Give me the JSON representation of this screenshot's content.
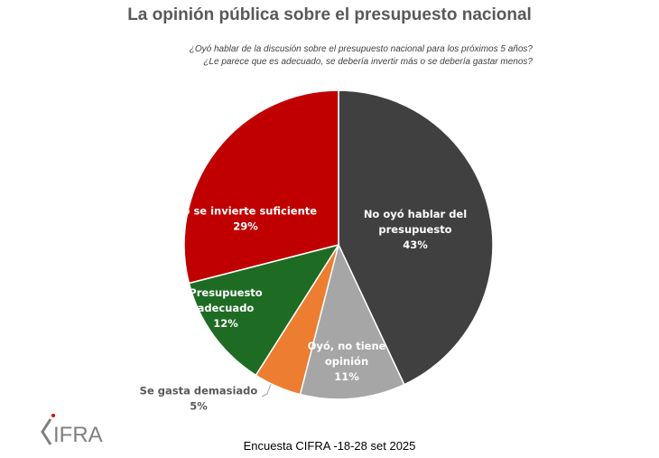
{
  "chart_data": {
    "type": "pie",
    "title": "La opinión pública sobre el presupuesto nacional",
    "subtitle": [
      "¿Oyó hablar de la discusión sobre el presupuesto nacional para los próximos 5 años?",
      "¿Le parece que es adecuado, se debería invertir más o se debería gastar menos?"
    ],
    "start": "top",
    "direction": "clockwise",
    "slices": [
      {
        "label": [
          "No oyó hablar del",
          "presupuesto"
        ],
        "value": 43,
        "value_label": "43%",
        "color": "#404040",
        "label_color": "#ffffff"
      },
      {
        "label": [
          "Oyó, no tiene",
          "opinión"
        ],
        "value": 11,
        "value_label": "11%",
        "color": "#a6a6a6",
        "label_color": "#ffffff"
      },
      {
        "label": [
          "Se gasta demasiado"
        ],
        "value": 5,
        "value_label": "5%",
        "color": "#ed7d31",
        "label_color": "#595959",
        "label_outside": true
      },
      {
        "label": [
          "Presupuesto",
          "adecuado"
        ],
        "value": 12,
        "value_label": "12%",
        "color": "#1e6b24",
        "label_color": "#ffffff"
      },
      {
        "label": [
          "No se invierte suficiente"
        ],
        "value": 29,
        "value_label": "29%",
        "color": "#c00000",
        "label_color": "#ffffff"
      }
    ]
  },
  "footer": "Encuesta CIFRA -18-28 set 2025",
  "logo_text": "CIFRA"
}
